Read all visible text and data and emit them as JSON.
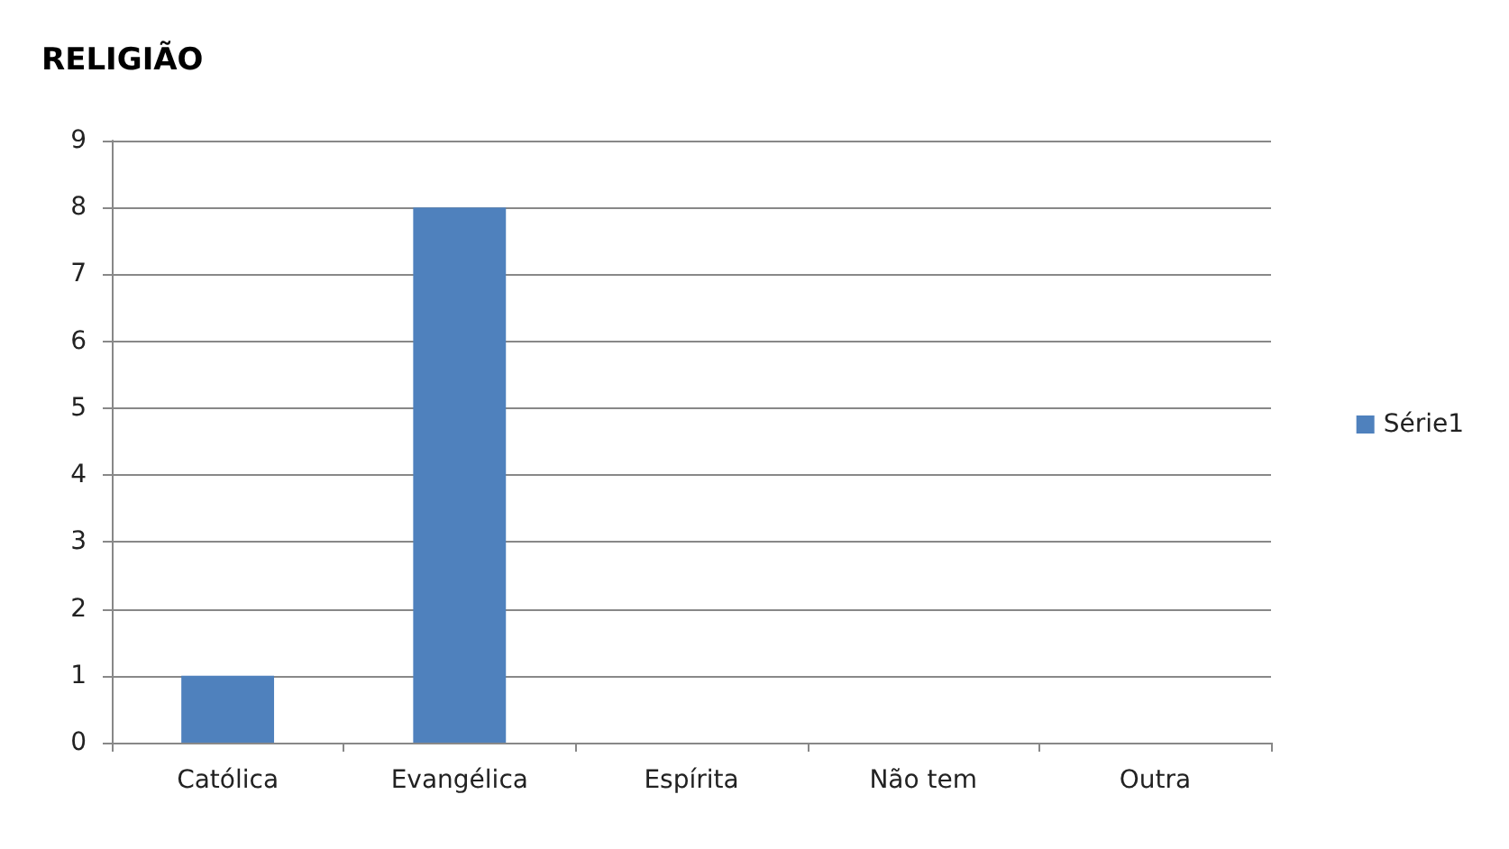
{
  "chart_data": {
    "type": "bar",
    "title": "RELIGIÃO",
    "categories": [
      "Católica",
      "Evangélica",
      "Espírita",
      "Não tem",
      "Outra"
    ],
    "series": [
      {
        "name": "Série1",
        "color": "#4f81bd",
        "values": [
          1,
          8,
          0,
          0,
          0
        ]
      }
    ],
    "ylim": [
      0,
      9
    ],
    "yticks": [
      0,
      1,
      2,
      3,
      4,
      5,
      6,
      7,
      8,
      9
    ],
    "grid": "y",
    "legend": "right"
  }
}
